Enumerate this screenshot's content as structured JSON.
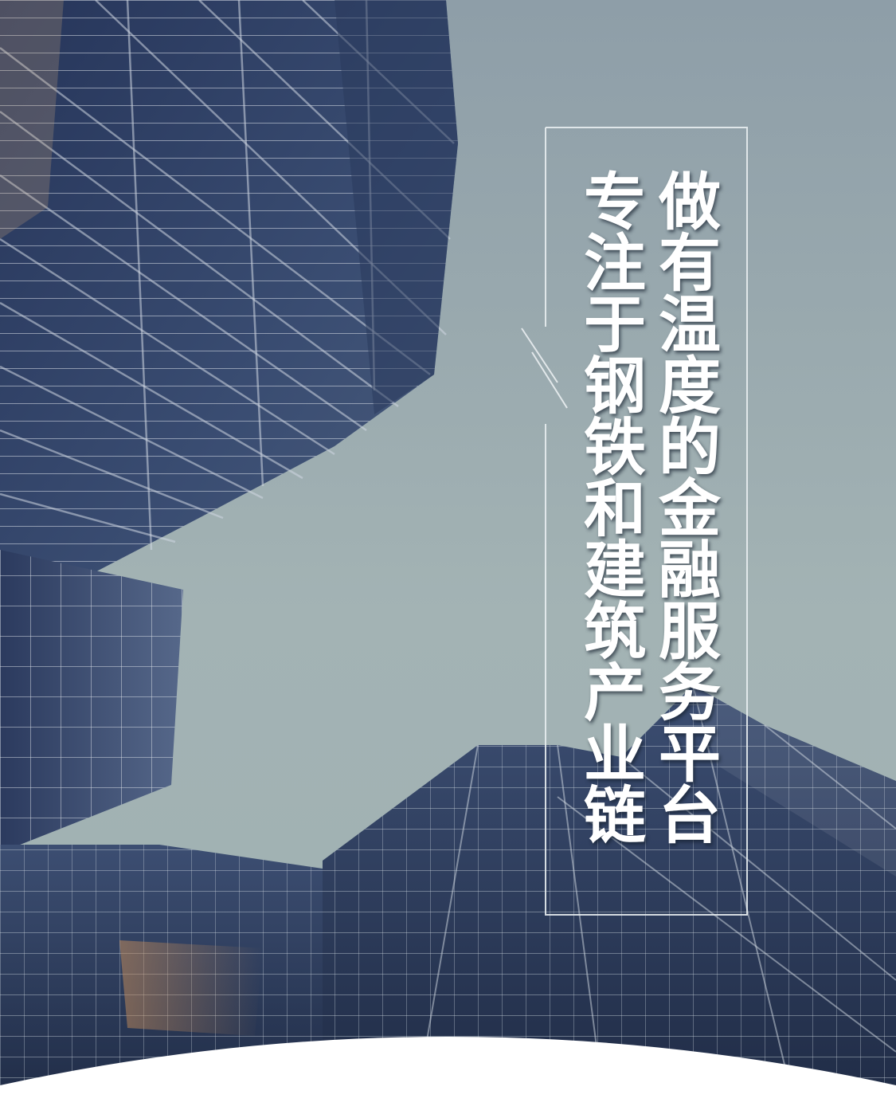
{
  "headline": "做有温度的金融服务平台",
  "subline": "专注于钢铁和建筑产业链",
  "colors": {
    "sky_top": "#93a3ac",
    "sky_bottom": "#a6b6b5",
    "glass_dark": "#1f2c48",
    "glass_mid": "#34456a",
    "mullion": "#c9d2dc",
    "frame_line": "#e8edf0",
    "bottom_curve": "#ffffff"
  },
  "decorations": [
    "building-glass-facade",
    "text-frame-outline",
    "diagonal-accent-lines",
    "bottom-white-curve"
  ]
}
